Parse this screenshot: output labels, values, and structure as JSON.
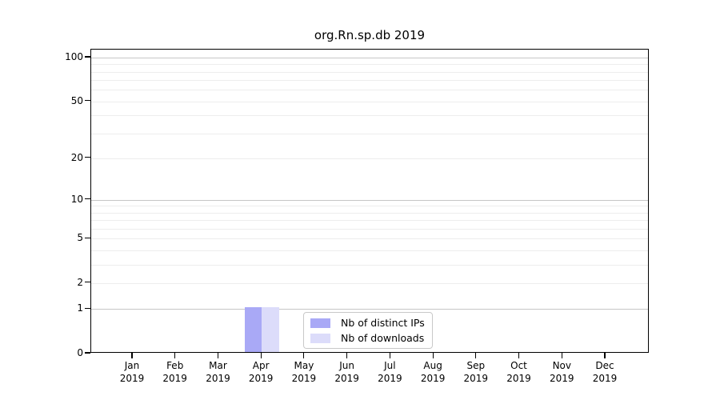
{
  "chart_data": {
    "type": "bar",
    "title": "org.Rn.sp.db 2019",
    "months": [
      "Jan",
      "Feb",
      "Mar",
      "Apr",
      "May",
      "Jun",
      "Jul",
      "Aug",
      "Sep",
      "Oct",
      "Nov",
      "Dec"
    ],
    "year_label": "2019",
    "series": [
      {
        "name": "Nb of distinct IPs",
        "color": "#a9a9f6",
        "values": [
          0,
          0,
          0,
          1,
          0,
          0,
          0,
          0,
          0,
          0,
          0,
          0
        ]
      },
      {
        "name": "Nb of downloads",
        "color": "#dcdcfa",
        "values": [
          0,
          0,
          0,
          1,
          0,
          0,
          0,
          0,
          0,
          0,
          0,
          0
        ]
      }
    ],
    "xlabel": "",
    "ylabel": "",
    "yscale": "log1p",
    "ylim": [
      0,
      113
    ],
    "yticks": [
      0,
      1,
      2,
      5,
      10,
      20,
      50,
      100
    ],
    "ytick_major_gridlines": [
      1,
      10,
      100
    ],
    "ytick_minor_gridlines": [
      2,
      3,
      4,
      5,
      6,
      7,
      8,
      9,
      20,
      30,
      40,
      50,
      60,
      70,
      80,
      90
    ],
    "grid": "horizontal",
    "legend_position": "lower-center-inside",
    "colors": {
      "axis": "#000000",
      "major_grid": "#c6c6c6",
      "minor_grid": "#ededed",
      "background": "#ffffff"
    }
  }
}
